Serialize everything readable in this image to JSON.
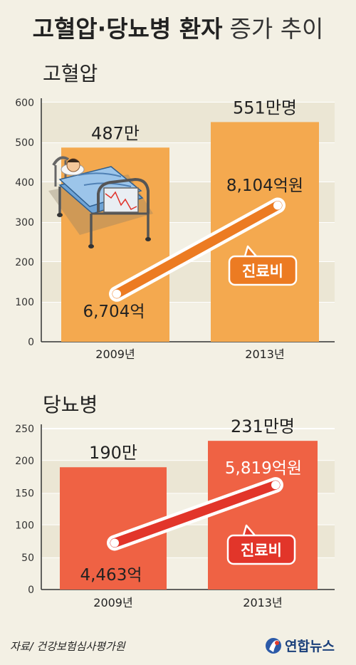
{
  "header": {
    "title_bold": "고혈압·당뇨병 환자",
    "title_light": "증가 추이"
  },
  "chart_data": [
    {
      "type": "bar",
      "title": "고혈압",
      "categories": [
        "2009년",
        "2013년"
      ],
      "values": [
        487,
        551
      ],
      "bar_labels": [
        "487만",
        "551만명"
      ],
      "ylim": [
        0,
        600
      ],
      "yticks": [
        0,
        100,
        200,
        300,
        400,
        500,
        600
      ],
      "grid": true,
      "bar_color": "#f4a94f",
      "cost_line": {
        "label": "진료비",
        "values": [
          6704,
          8104
        ],
        "value_labels": [
          "6,704억",
          "8,104억원"
        ],
        "color": "#ec7b22"
      }
    },
    {
      "type": "bar",
      "title": "당뇨병",
      "categories": [
        "2009년",
        "2013년"
      ],
      "values": [
        190,
        231
      ],
      "bar_labels": [
        "190만",
        "231만명"
      ],
      "ylim": [
        0,
        250
      ],
      "yticks": [
        0,
        50,
        100,
        150,
        200,
        250
      ],
      "grid": true,
      "bar_color": "#ef6244",
      "cost_line": {
        "label": "진료비",
        "values": [
          4463,
          5819
        ],
        "value_labels": [
          "4,463억",
          "5,819억원"
        ],
        "color": "#e2352a"
      }
    }
  ],
  "footer": {
    "source": "자료/ 건강보험심사평가원",
    "brand": "연합뉴스"
  },
  "icons": [
    "hospital-bed-icon",
    "yonhap-logo-icon"
  ]
}
